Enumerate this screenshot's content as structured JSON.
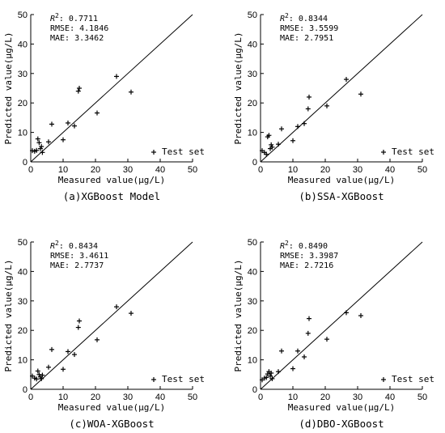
{
  "chart_data": [
    {
      "type": "scatter",
      "caption": "(a)XGBoost Model",
      "xlabel": "Measured value(μg/L)",
      "ylabel": "Predicted value(μg/L)",
      "xlim": [
        0,
        50
      ],
      "ylim": [
        0,
        50
      ],
      "ticks": [
        "0",
        "10",
        "20",
        "30",
        "40",
        "50"
      ],
      "stats": {
        "r2_label": "R",
        "r2_sup": "2",
        "r2_value": ": 0.7711",
        "rmse": "RMSE: 4.1846",
        "mae": "MAE: 3.3462"
      },
      "legend": "Test set",
      "reference_line": "y = x",
      "series": [
        {
          "name": "Test set",
          "x": [
            0.5,
            1.2,
            1.8,
            2.2,
            2.6,
            3.0,
            3.3,
            3.6,
            5.5,
            6.5,
            10.0,
            11.5,
            13.5,
            14.7,
            15.0,
            20.5,
            26.5,
            31.0
          ],
          "y": [
            3.8,
            3.6,
            3.9,
            7.8,
            6.5,
            4.5,
            5.2,
            3.2,
            6.8,
            12.8,
            7.5,
            13.2,
            12.2,
            24.0,
            25.0,
            16.6,
            29.0,
            23.7
          ]
        }
      ]
    },
    {
      "type": "scatter",
      "caption": "(b)SSA-XGBoost",
      "xlabel": "Measured value(μg/L)",
      "ylabel": "Predicted value(μg/L)",
      "xlim": [
        0,
        50
      ],
      "ylim": [
        0,
        50
      ],
      "ticks": [
        "0",
        "10",
        "20",
        "30",
        "40",
        "50"
      ],
      "stats": {
        "r2_label": "R",
        "r2_sup": "2",
        "r2_value": ": 0.8344",
        "rmse": "RMSE: 3.5599",
        "mae": "MAE: 2.7951"
      },
      "legend": "Test set",
      "reference_line": "y = x",
      "series": [
        {
          "name": "Test set",
          "x": [
            0.5,
            1.2,
            1.8,
            2.2,
            2.6,
            3.0,
            3.3,
            3.6,
            5.5,
            6.5,
            10.0,
            11.5,
            13.5,
            14.7,
            15.0,
            20.5,
            26.5,
            31.0
          ],
          "y": [
            3.8,
            3.2,
            2.6,
            8.5,
            9.0,
            4.5,
            5.8,
            5.0,
            6.0,
            11.2,
            7.2,
            12.0,
            13.0,
            18.0,
            22.0,
            19.0,
            28.0,
            23.0
          ]
        }
      ]
    },
    {
      "type": "scatter",
      "caption": "(c)WOA-XGBoost",
      "xlabel": "Measured value(μg/L)",
      "ylabel": "Predicted value(μg/L)",
      "xlim": [
        0,
        50
      ],
      "ylim": [
        0,
        50
      ],
      "ticks": [
        "0",
        "10",
        "20",
        "30",
        "40",
        "50"
      ],
      "stats": {
        "r2_label": "R",
        "r2_sup": "2",
        "r2_value": ": 0.8434",
        "rmse": "RMSE: 3.4611",
        "mae": "MAE: 2.7737"
      },
      "legend": "Test set",
      "reference_line": "y = x",
      "series": [
        {
          "name": "Test set",
          "x": [
            0.5,
            1.2,
            1.8,
            2.2,
            2.6,
            3.0,
            3.3,
            3.6,
            5.5,
            6.5,
            10.0,
            11.5,
            13.5,
            14.7,
            15.0,
            20.5,
            26.5,
            31.0
          ],
          "y": [
            4.5,
            3.8,
            3.5,
            6.2,
            5.0,
            4.2,
            3.6,
            4.8,
            7.5,
            13.5,
            6.8,
            12.8,
            11.8,
            21.0,
            23.2,
            16.8,
            28.0,
            25.8
          ]
        }
      ]
    },
    {
      "type": "scatter",
      "caption": "(d)DBO-XGBoost",
      "xlabel": "Measured value(μg/L)",
      "ylabel": "Predicted value(μg/L)",
      "xlim": [
        0,
        50
      ],
      "ylim": [
        0,
        50
      ],
      "ticks": [
        "0",
        "10",
        "20",
        "30",
        "40",
        "50"
      ],
      "stats": {
        "r2_label": "R",
        "r2_sup": "2",
        "r2_value": ": 0.8490",
        "rmse": "RMSE: 3.3987",
        "mae": "MAE: 2.7216"
      },
      "legend": "Test set",
      "reference_line": "y = x",
      "series": [
        {
          "name": "Test set",
          "x": [
            0.5,
            1.2,
            1.8,
            2.2,
            2.6,
            3.0,
            3.3,
            3.6,
            5.5,
            6.5,
            10.0,
            11.5,
            13.5,
            14.7,
            15.0,
            20.5,
            26.5,
            31.0
          ],
          "y": [
            3.2,
            3.8,
            4.0,
            5.2,
            6.0,
            4.5,
            5.5,
            3.6,
            6.0,
            13.0,
            7.0,
            13.0,
            11.0,
            19.0,
            24.0,
            17.0,
            26.0,
            25.0
          ]
        }
      ]
    }
  ]
}
